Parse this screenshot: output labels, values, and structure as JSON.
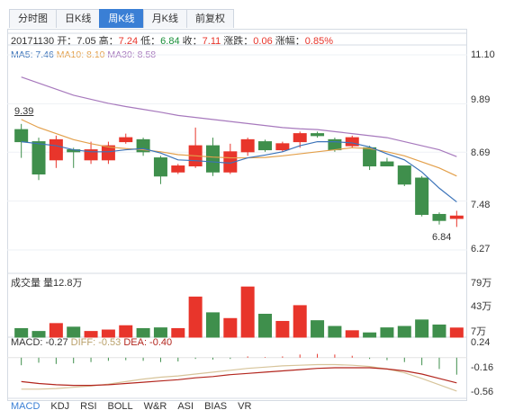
{
  "tabs": [
    {
      "label": "分时图",
      "active": false
    },
    {
      "label": "日K线",
      "active": false
    },
    {
      "label": "周K线",
      "active": true
    },
    {
      "label": "月K线",
      "active": false
    },
    {
      "label": "前复权",
      "active": false
    }
  ],
  "info": {
    "date": "20171130",
    "open_label": "开：",
    "open": "7.05",
    "high_label": "高：",
    "high": "7.24",
    "low_label": "低：",
    "low": "6.84",
    "close_label": "收：",
    "close": "7.11",
    "chg_label": "涨跌：",
    "chg": "0.06",
    "pct_label": "涨幅：",
    "pct": "0.85%"
  },
  "ma": {
    "ma5_label": "MA5: 7.46",
    "ma10_label": "MA10: 8.10",
    "ma30_label": "MA30: 8.58"
  },
  "price_axis": [
    "11.10",
    "9.89",
    "8.69",
    "7.48",
    "6.27"
  ],
  "annotations": {
    "high": "9.39",
    "low": "6.84"
  },
  "volume": {
    "title": "成交量 量12.8万",
    "axis": [
      "79万",
      "43万",
      "7万"
    ]
  },
  "macd": {
    "label": "MACD: -0.27",
    "diff": "DIFF: -0.53",
    "dea": "DEA: -0.40",
    "axis": [
      "0.24",
      "-0.16",
      "-0.56"
    ]
  },
  "indicator_tabs": [
    {
      "label": "MACD",
      "active": true
    },
    {
      "label": "KDJ",
      "active": false
    },
    {
      "label": "RSI",
      "active": false
    },
    {
      "label": "BOLL",
      "active": false
    },
    {
      "label": "W&R",
      "active": false
    },
    {
      "label": "ASI",
      "active": false
    },
    {
      "label": "BIAS",
      "active": false
    },
    {
      "label": "VR",
      "active": false
    }
  ],
  "colors": {
    "up": "#e8352b",
    "down": "#3f8f4c",
    "ma5": "#3b73b9",
    "ma10": "#e3a04b",
    "ma30": "#a779bd"
  },
  "chart_data": {
    "type": "candlestick",
    "price_range": [
      6.27,
      11.1
    ],
    "volume_range": [
      0,
      79
    ],
    "macd_range": [
      -0.56,
      0.24
    ],
    "candles": [
      {
        "o": 9.25,
        "c": 8.95,
        "h": 9.39,
        "l": 8.55
      },
      {
        "o": 8.95,
        "c": 8.15,
        "h": 9.05,
        "l": 8.0
      },
      {
        "o": 8.5,
        "c": 9.0,
        "h": 9.1,
        "l": 8.3
      },
      {
        "o": 8.75,
        "c": 8.7,
        "h": 8.8,
        "l": 8.3
      },
      {
        "o": 8.5,
        "c": 8.75,
        "h": 8.95,
        "l": 8.4
      },
      {
        "o": 8.5,
        "c": 8.85,
        "h": 8.95,
        "l": 8.4
      },
      {
        "o": 8.95,
        "c": 9.05,
        "h": 9.15,
        "l": 8.9
      },
      {
        "o": 9.0,
        "c": 8.7,
        "h": 9.05,
        "l": 8.6
      },
      {
        "o": 8.55,
        "c": 8.1,
        "h": 8.6,
        "l": 7.9
      },
      {
        "o": 8.2,
        "c": 8.35,
        "h": 8.4,
        "l": 8.15
      },
      {
        "o": 8.35,
        "c": 8.85,
        "h": 9.3,
        "l": 8.3
      },
      {
        "o": 8.85,
        "c": 8.2,
        "h": 9.05,
        "l": 8.1
      },
      {
        "o": 8.2,
        "c": 8.7,
        "h": 8.9,
        "l": 8.15
      },
      {
        "o": 8.7,
        "c": 9.0,
        "h": 9.05,
        "l": 8.6
      },
      {
        "o": 8.95,
        "c": 8.75,
        "h": 9.0,
        "l": 8.7
      },
      {
        "o": 8.75,
        "c": 8.9,
        "h": 8.95,
        "l": 8.7
      },
      {
        "o": 8.95,
        "c": 9.15,
        "h": 9.2,
        "l": 8.8
      },
      {
        "o": 9.15,
        "c": 9.1,
        "h": 9.2,
        "l": 9.05
      },
      {
        "o": 9.0,
        "c": 8.75,
        "h": 9.05,
        "l": 8.7
      },
      {
        "o": 8.85,
        "c": 9.05,
        "h": 9.1,
        "l": 8.8
      },
      {
        "o": 8.8,
        "c": 8.35,
        "h": 8.85,
        "l": 8.25
      },
      {
        "o": 8.45,
        "c": 8.35,
        "h": 8.55,
        "l": 8.35
      },
      {
        "o": 8.35,
        "c": 7.9,
        "h": 8.35,
        "l": 7.85
      },
      {
        "o": 8.05,
        "c": 7.15,
        "h": 8.1,
        "l": 7.1
      },
      {
        "o": 7.15,
        "c": 7.0,
        "h": 7.2,
        "l": 6.9
      },
      {
        "o": 7.05,
        "c": 7.11,
        "h": 7.24,
        "l": 6.84
      }
    ],
    "volumes": [
      12,
      8,
      19,
      14,
      8,
      10,
      16,
      12,
      13,
      12,
      56,
      34,
      26,
      70,
      32,
      22,
      44,
      23,
      15,
      9,
      6,
      13,
      15,
      24,
      17,
      12.8
    ],
    "ma5": [
      8.95,
      8.9,
      8.85,
      8.75,
      8.7,
      8.7,
      8.75,
      8.78,
      8.67,
      8.5,
      8.48,
      8.45,
      8.42,
      8.55,
      8.62,
      8.7,
      8.85,
      8.95,
      8.95,
      8.92,
      8.82,
      8.65,
      8.5,
      8.2,
      7.8,
      7.46
    ],
    "ma10": [
      9.5,
      9.3,
      9.15,
      9.0,
      8.9,
      8.82,
      8.78,
      8.75,
      8.7,
      8.63,
      8.6,
      8.57,
      8.55,
      8.55,
      8.56,
      8.6,
      8.65,
      8.7,
      8.75,
      8.8,
      8.78,
      8.7,
      8.6,
      8.45,
      8.3,
      8.1
    ],
    "ma30": [
      10.55,
      10.4,
      10.25,
      10.1,
      10.0,
      9.9,
      9.82,
      9.75,
      9.68,
      9.6,
      9.55,
      9.5,
      9.45,
      9.4,
      9.35,
      9.3,
      9.27,
      9.25,
      9.2,
      9.15,
      9.1,
      9.05,
      8.95,
      8.85,
      8.75,
      8.58
    ],
    "macd_hist": [
      -0.12,
      -0.08,
      -0.1,
      -0.09,
      -0.07,
      -0.05,
      -0.04,
      -0.05,
      -0.07,
      -0.06,
      -0.02,
      -0.03,
      -0.02,
      0.02,
      0.01,
      0.02,
      0.05,
      0.06,
      0.05,
      0.03,
      -0.02,
      -0.04,
      -0.07,
      -0.12,
      -0.18,
      -0.27
    ],
    "diff": [
      -0.5,
      -0.5,
      -0.49,
      -0.47,
      -0.45,
      -0.42,
      -0.38,
      -0.34,
      -0.31,
      -0.29,
      -0.26,
      -0.23,
      -0.2,
      -0.17,
      -0.15,
      -0.13,
      -0.12,
      -0.11,
      -0.11,
      -0.12,
      -0.14,
      -0.18,
      -0.24,
      -0.33,
      -0.43,
      -0.53
    ],
    "dea": [
      -0.38,
      -0.41,
      -0.43,
      -0.44,
      -0.44,
      -0.43,
      -0.41,
      -0.39,
      -0.37,
      -0.35,
      -0.32,
      -0.3,
      -0.27,
      -0.25,
      -0.23,
      -0.21,
      -0.19,
      -0.17,
      -0.16,
      -0.16,
      -0.16,
      -0.18,
      -0.21,
      -0.26,
      -0.33,
      -0.4
    ]
  }
}
